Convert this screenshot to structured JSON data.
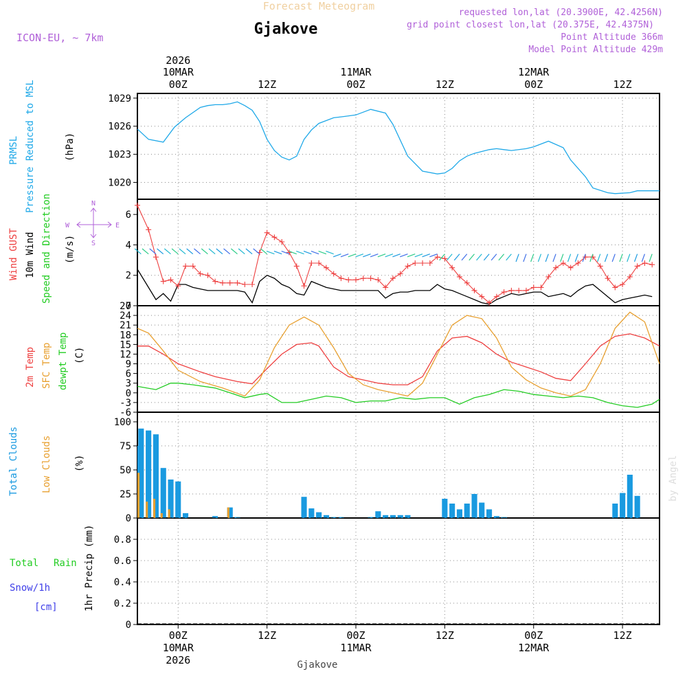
{
  "header": {
    "forecast_label": "Forecast Meteogram",
    "location": "Gjakove",
    "model": "ICON-EU, ~ 7km",
    "requested": "requested lon,lat (20.3900E, 42.4256N)",
    "grid_point": "grid point closest lon,lat (20.375E, 42.4375N)",
    "point_altitude": "Point Altitude 366m",
    "model_altitude": "Model Point Altitude 429m",
    "footer_location": "Gjakove",
    "credit": "by Angel"
  },
  "colors": {
    "pressure": "#1ea8e8",
    "gust": "#ee3f3f",
    "wind": "#000000",
    "green": "#22cc22",
    "orange": "#e8a030",
    "purple": "#b060d8",
    "blue": "#3f3fe8",
    "cloud": "#1a9ae0",
    "low_cloud": "#e8a030",
    "grid": "#888888"
  },
  "time_axis": {
    "year_label": "2026",
    "top_ticks": [
      {
        "h": 0,
        "hour": "00Z",
        "date": "10MAR",
        "year": "2026"
      },
      {
        "h": 12,
        "hour": "12Z",
        "date": "",
        "year": ""
      },
      {
        "h": 24,
        "hour": "00Z",
        "date": "11MAR",
        "year": ""
      },
      {
        "h": 36,
        "hour": "12Z",
        "date": "",
        "year": ""
      },
      {
        "h": 48,
        "hour": "00Z",
        "date": "12MAR",
        "year": ""
      },
      {
        "h": 60,
        "hour": "12Z",
        "date": "",
        "year": ""
      }
    ],
    "start_hour": -5.5,
    "end_hour": 65
  },
  "panels": {
    "pressure": {
      "labels": [
        "PRMSL",
        "Pressure Reduced to MSL"
      ],
      "units": "(hPa)"
    },
    "wind": {
      "labels": [
        "Wind GUST",
        "10m Wind",
        "Speed and Direction"
      ],
      "units": "(m/s)",
      "compass": {
        "n": "N",
        "s": "S",
        "w": "W",
        "e": "E"
      }
    },
    "temp": {
      "labels": [
        "2m Temp",
        "SFC Temp",
        "dewpt Temp"
      ],
      "units": "(C)"
    },
    "clouds": {
      "labels": [
        "Total Clouds",
        "Low Clouds"
      ],
      "units": "(%)"
    },
    "precip": {
      "labels": [
        "Total",
        "Rain",
        "Snow/1h",
        "[cm]"
      ],
      "units": "1hr Precip (mm)"
    }
  },
  "chart_data": [
    {
      "type": "line",
      "title": "PRMSL Pressure Reduced to MSL",
      "ylabel": "(hPa)",
      "ylim": [
        1018.2,
        1029.5
      ],
      "yticks": [
        "1020",
        "1023",
        "1026",
        "1029"
      ],
      "series": [
        {
          "name": "PRMSL",
          "x": [
            -5.5,
            -4,
            -2,
            -0.5,
            1,
            3,
            4,
            5,
            6,
            7,
            8,
            9,
            10,
            11,
            12,
            13,
            14,
            15,
            16,
            17,
            18,
            19,
            20,
            21,
            22,
            24,
            26,
            28,
            29,
            31,
            33,
            35,
            36,
            37,
            38,
            39,
            40,
            41,
            42,
            43,
            44,
            45,
            47,
            48,
            50,
            52,
            53,
            55,
            56,
            58,
            59,
            61,
            62,
            63,
            64,
            65
          ],
          "values": [
            1025.7,
            1024.6,
            1024.3,
            1025.9,
            1026.9,
            1028.0,
            1028.2,
            1028.3,
            1028.3,
            1028.4,
            1028.6,
            1028.2,
            1027.7,
            1026.5,
            1024.6,
            1023.4,
            1022.7,
            1022.4,
            1022.8,
            1024.6,
            1025.6,
            1026.3,
            1026.6,
            1026.9,
            1027.0,
            1027.2,
            1027.8,
            1027.4,
            1026.2,
            1022.8,
            1021.2,
            1020.9,
            1021.0,
            1021.5,
            1022.3,
            1022.8,
            1023.1,
            1023.3,
            1023.5,
            1023.6,
            1023.5,
            1023.4,
            1023.6,
            1023.8,
            1024.4,
            1023.7,
            1022.4,
            1020.6,
            1019.4,
            1018.9,
            1018.8,
            1018.9,
            1019.1,
            1019.1,
            1019.1,
            1019.1
          ]
        }
      ]
    },
    {
      "type": "line",
      "title": "Wind GUST / 10m Wind Speed and Direction",
      "ylabel": "(m/s)",
      "ylim": [
        0,
        7
      ],
      "yticks": [
        "0",
        "2",
        "4",
        "6"
      ],
      "series": [
        {
          "name": "Wind GUST",
          "x": [
            -5.5,
            -4,
            -3,
            -2,
            -1,
            0,
            1,
            2,
            3,
            4,
            5,
            6,
            7,
            8,
            9,
            10,
            11,
            12,
            13,
            14,
            15,
            16,
            17,
            18,
            19,
            20,
            21,
            22,
            23,
            24,
            25,
            26,
            27,
            28,
            29,
            30,
            31,
            32,
            33,
            34,
            35,
            36,
            37,
            38,
            39,
            40,
            41,
            42,
            43,
            44,
            45,
            46,
            47,
            48,
            49,
            50,
            51,
            52,
            53,
            54,
            55,
            56,
            57,
            58,
            59,
            60,
            61,
            62,
            63,
            64
          ],
          "values": [
            6.6,
            5.0,
            3.2,
            1.6,
            1.7,
            1.3,
            2.6,
            2.6,
            2.1,
            2.0,
            1.6,
            1.5,
            1.5,
            1.5,
            1.4,
            1.4,
            3.5,
            4.8,
            4.5,
            4.2,
            3.5,
            2.6,
            1.3,
            2.8,
            2.8,
            2.5,
            2.1,
            1.8,
            1.7,
            1.7,
            1.8,
            1.8,
            1.7,
            1.2,
            1.8,
            2.1,
            2.6,
            2.8,
            2.8,
            2.8,
            3.2,
            3.1,
            2.5,
            1.9,
            1.5,
            1.0,
            0.6,
            0.2,
            0.6,
            0.9,
            1.0,
            1.0,
            1.0,
            1.2,
            1.2,
            1.9,
            2.5,
            2.8,
            2.5,
            2.8,
            3.2,
            3.2,
            2.6,
            1.8,
            1.2,
            1.4,
            1.9,
            2.6,
            2.8,
            2.7
          ]
        },
        {
          "name": "10m Wind",
          "x": [
            -5.5,
            -4,
            -3,
            -2,
            -1,
            0,
            1,
            2,
            3,
            4,
            5,
            6,
            7,
            8,
            9,
            10,
            11,
            12,
            13,
            14,
            15,
            16,
            17,
            18,
            19,
            20,
            21,
            22,
            23,
            24,
            25,
            26,
            27,
            28,
            29,
            30,
            31,
            32,
            33,
            34,
            35,
            36,
            37,
            38,
            39,
            40,
            41,
            42,
            43,
            44,
            45,
            46,
            47,
            48,
            49,
            50,
            51,
            52,
            53,
            54,
            55,
            56,
            57,
            58,
            59,
            60,
            61,
            62,
            63,
            64
          ],
          "values": [
            2.4,
            1.2,
            0.4,
            0.8,
            0.3,
            1.4,
            1.4,
            1.2,
            1.1,
            1.0,
            1.0,
            1.0,
            1.0,
            1.0,
            0.9,
            0.2,
            1.6,
            2.0,
            1.8,
            1.4,
            1.2,
            0.8,
            0.7,
            1.6,
            1.4,
            1.2,
            1.1,
            1.0,
            1.0,
            1.0,
            1.0,
            1.0,
            1.0,
            0.5,
            0.8,
            0.9,
            0.9,
            1.0,
            1.0,
            1.0,
            1.4,
            1.1,
            1.0,
            0.8,
            0.6,
            0.4,
            0.2,
            0.1,
            0.4,
            0.6,
            0.8,
            0.7,
            0.8,
            0.9,
            0.9,
            0.6,
            0.7,
            0.8,
            0.6,
            1.0,
            1.3,
            1.4,
            1.0,
            0.6,
            0.2,
            0.4,
            0.5,
            0.6,
            0.7,
            0.6
          ]
        }
      ]
    },
    {
      "type": "line",
      "title": "2m Temp / SFC Temp / dewpt Temp",
      "ylabel": "(C)",
      "ylim": [
        -6,
        27
      ],
      "yticks": [
        "-6",
        "-3",
        "0",
        "3",
        "6",
        "9",
        "12",
        "15",
        "18",
        "21",
        "24",
        "27"
      ],
      "series": [
        {
          "name": "2m Temp",
          "x": [
            -5.5,
            -4,
            -2,
            0,
            3,
            5,
            8,
            10,
            12,
            14,
            16,
            18,
            19,
            21,
            23,
            25,
            27,
            29,
            31,
            33,
            35,
            37,
            39,
            41,
            43,
            45,
            47,
            49,
            51,
            53,
            55,
            57,
            59,
            61,
            63,
            65
          ],
          "values": [
            14.5,
            14.5,
            12.0,
            9.0,
            6.5,
            5.0,
            3.5,
            2.8,
            7.5,
            12.0,
            15.0,
            15.5,
            14.5,
            8.0,
            5.0,
            4.0,
            3.0,
            2.5,
            2.5,
            5.0,
            13.0,
            17.0,
            17.5,
            15.5,
            12.0,
            9.5,
            8.0,
            6.5,
            4.5,
            3.8,
            9.0,
            14.5,
            17.5,
            18.3,
            17.0,
            14.5
          ]
        },
        {
          "name": "SFC Temp",
          "x": [
            -5.5,
            -4,
            -2,
            0,
            3,
            6,
            9,
            11,
            13,
            15,
            17,
            19,
            21,
            23,
            25,
            27,
            29,
            31,
            33,
            35,
            37,
            39,
            41,
            43,
            45,
            47,
            49,
            51,
            53,
            55,
            57,
            59,
            61,
            63,
            65
          ],
          "values": [
            20.0,
            18.5,
            13.0,
            7.0,
            3.5,
            1.5,
            -1.0,
            4.0,
            14.0,
            21.0,
            23.5,
            21.0,
            14.0,
            6.0,
            2.5,
            1.0,
            0.0,
            -1.0,
            3.0,
            12.0,
            21.0,
            24.0,
            23.0,
            17.0,
            8.0,
            4.0,
            1.5,
            0.0,
            -1.0,
            1.0,
            9.0,
            20.0,
            25.0,
            22.0,
            9.0
          ]
        },
        {
          "name": "dewpt Temp",
          "x": [
            -5.5,
            -3,
            -1,
            0,
            2,
            5,
            7,
            9,
            11,
            12,
            14,
            16,
            18,
            20,
            22,
            24,
            26,
            28,
            30,
            32,
            34,
            36,
            38,
            40,
            42,
            44,
            46,
            48,
            50,
            52,
            54,
            56,
            58,
            60,
            62,
            64,
            65
          ],
          "values": [
            2.0,
            1.0,
            3.0,
            3.0,
            2.5,
            1.5,
            0.0,
            -1.5,
            -0.5,
            -0.2,
            -3.0,
            -3.0,
            -2.0,
            -1.0,
            -1.5,
            -3.0,
            -2.5,
            -2.5,
            -1.5,
            -2.0,
            -1.5,
            -1.5,
            -3.5,
            -1.5,
            -0.5,
            1.0,
            0.5,
            -0.5,
            -1.0,
            -1.5,
            -1.0,
            -1.5,
            -3.0,
            -4.0,
            -4.5,
            -3.5,
            -2.0
          ]
        }
      ]
    },
    {
      "type": "bar",
      "title": "Total Clouds / Low Clouds",
      "ylabel": "(%)",
      "ylim": [
        0,
        110
      ],
      "yticks": [
        "0",
        "25",
        "50",
        "75",
        "100"
      ],
      "series": [
        {
          "name": "Total Clouds",
          "x": [
            -5.5,
            -5,
            -4,
            -3,
            -2,
            -1,
            0,
            1,
            5,
            7,
            8,
            17,
            18,
            19,
            20,
            21,
            22,
            26,
            27,
            28,
            29,
            30,
            31,
            36,
            37,
            38,
            39,
            40,
            41,
            42,
            43,
            44,
            59,
            60,
            61,
            62
          ],
          "values": [
            75,
            93,
            91,
            87,
            52,
            40,
            38,
            5,
            2,
            11,
            1,
            22,
            10,
            6,
            3,
            1,
            1,
            1,
            7,
            3,
            3,
            3,
            3,
            20,
            15,
            9,
            15,
            25,
            16,
            9,
            2,
            1,
            15,
            26,
            45,
            23
          ]
        },
        {
          "name": "Low Clouds",
          "x": [
            -5.5,
            -4,
            -3,
            -2,
            -1,
            7
          ],
          "values": [
            47,
            17,
            20,
            5,
            9,
            11
          ]
        }
      ]
    },
    {
      "type": "line",
      "title": "Total Rain Snow/1h",
      "ylabel": "1hr Precip (mm)",
      "ylim": [
        0,
        1.0
      ],
      "yticks": [
        "0",
        "0.2",
        "0.4",
        "0.6",
        "0.8"
      ],
      "series": [
        {
          "name": "Total",
          "x": [
            -5.5,
            65
          ],
          "values": [
            0,
            0
          ]
        },
        {
          "name": "Snow/1h",
          "x": [
            -5.5,
            65
          ],
          "values": [
            0,
            0
          ]
        }
      ]
    }
  ]
}
